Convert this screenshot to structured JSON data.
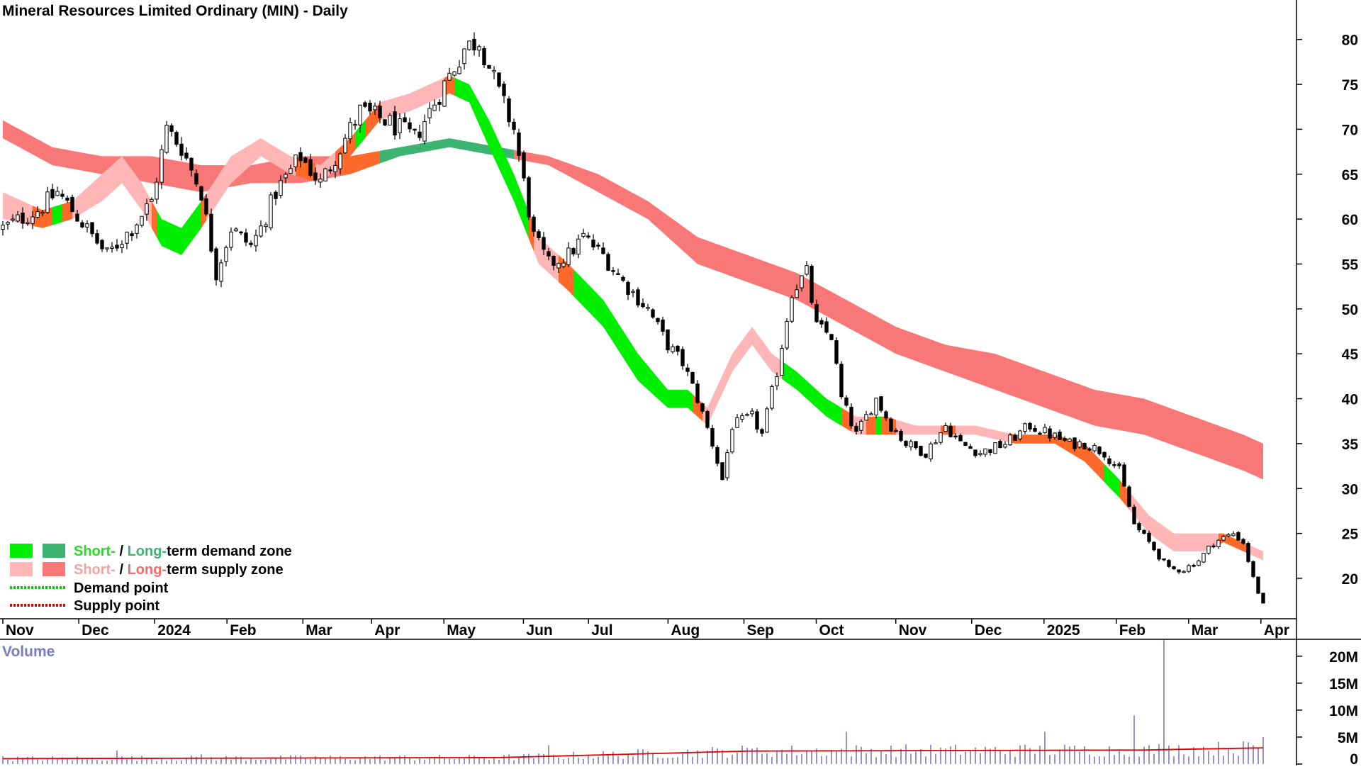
{
  "chart_data": {
    "type": "candlestick",
    "title": "Mineral Resources Limited Ordinary (MIN) - Daily",
    "price_axis": {
      "ticks": [
        20,
        25,
        30,
        35,
        40,
        45,
        50,
        55,
        60,
        65,
        70,
        75,
        80
      ],
      "range": [
        15.5,
        84
      ]
    },
    "x_axis_labels": [
      "Nov",
      "Dec",
      "2024",
      "Feb",
      "Mar",
      "Apr",
      "May",
      "Jun",
      "Jul",
      "Aug",
      "Sep",
      "Oct",
      "Nov",
      "Dec",
      "2025",
      "Feb",
      "Mar",
      "Apr"
    ],
    "legend": [
      {
        "swatches": [
          "#00ee00",
          "#3cb371"
        ],
        "parts": [
          {
            "text": "Short-",
            "color": "#22dd22"
          },
          {
            "text": " / ",
            "color": "#000000"
          },
          {
            "text": "Long-",
            "color": "#3cb371"
          },
          {
            "text": "term demand zone",
            "color": "#000000"
          }
        ]
      },
      {
        "swatches": [
          "#ffb6b6",
          "#f87777"
        ],
        "parts": [
          {
            "text": "Short-",
            "color": "#f4a3a3"
          },
          {
            "text": " / ",
            "color": "#000000"
          },
          {
            "text": "Long-",
            "color": "#f06b6b"
          },
          {
            "text": "term supply zone",
            "color": "#000000"
          }
        ]
      },
      {
        "line": "#00cc00",
        "parts": [
          {
            "text": "Demand point",
            "color": "#000000"
          }
        ]
      },
      {
        "line": "#dd0000",
        "parts": [
          {
            "text": "Supply point",
            "color": "#000000"
          }
        ]
      }
    ],
    "price_path": [
      [
        0,
        59
      ],
      [
        7,
        61
      ],
      [
        11,
        63
      ],
      [
        14,
        61
      ],
      [
        21,
        56
      ],
      [
        26,
        59
      ],
      [
        30,
        62
      ],
      [
        33,
        70
      ],
      [
        36,
        68
      ],
      [
        40,
        63
      ],
      [
        43,
        54
      ],
      [
        46,
        59
      ],
      [
        50,
        57
      ],
      [
        52,
        59
      ],
      [
        55,
        63
      ],
      [
        60,
        67
      ],
      [
        64,
        64
      ],
      [
        68,
        68
      ],
      [
        72,
        72
      ],
      [
        77,
        71
      ],
      [
        83,
        69
      ],
      [
        86,
        72
      ],
      [
        90,
        76
      ],
      [
        93,
        79
      ],
      [
        96,
        80
      ],
      [
        98,
        77
      ],
      [
        100,
        74
      ],
      [
        103,
        70
      ],
      [
        105,
        64
      ],
      [
        107,
        58
      ],
      [
        110,
        55
      ],
      [
        114,
        56
      ],
      [
        117,
        58
      ],
      [
        121,
        56
      ],
      [
        125,
        53
      ],
      [
        130,
        50
      ],
      [
        134,
        46
      ],
      [
        137,
        44
      ],
      [
        140,
        40
      ],
      [
        143,
        35
      ],
      [
        145,
        31
      ],
      [
        147,
        37
      ],
      [
        151,
        38
      ],
      [
        153,
        36
      ],
      [
        156,
        43
      ],
      [
        159,
        52
      ],
      [
        162,
        54
      ],
      [
        164,
        48
      ],
      [
        167,
        47
      ],
      [
        169,
        40
      ],
      [
        172,
        36
      ],
      [
        176,
        40
      ],
      [
        179,
        37
      ],
      [
        182,
        35
      ],
      [
        186,
        34
      ],
      [
        190,
        37
      ],
      [
        193,
        35
      ],
      [
        197,
        34
      ],
      [
        202,
        35
      ],
      [
        207,
        37
      ],
      [
        211,
        36
      ],
      [
        215,
        35
      ],
      [
        218,
        35
      ],
      [
        222,
        34
      ],
      [
        225,
        32
      ],
      [
        228,
        26
      ],
      [
        231,
        24
      ],
      [
        235,
        21
      ],
      [
        238,
        21
      ],
      [
        241,
        22
      ],
      [
        244,
        24
      ],
      [
        248,
        25
      ],
      [
        250,
        24
      ],
      [
        252,
        20
      ],
      [
        254,
        17
      ]
    ],
    "short_term_zone": {
      "upper": [
        [
          0,
          63
        ],
        [
          8,
          61
        ],
        [
          14,
          62
        ],
        [
          20,
          65
        ],
        [
          24,
          67
        ],
        [
          28,
          64
        ],
        [
          32,
          60
        ],
        [
          36,
          59
        ],
        [
          40,
          62
        ],
        [
          46,
          67
        ],
        [
          52,
          69
        ],
        [
          58,
          67
        ],
        [
          64,
          66
        ],
        [
          70,
          69
        ],
        [
          76,
          73
        ],
        [
          82,
          74
        ],
        [
          90,
          76
        ],
        [
          94,
          75
        ],
        [
          98,
          71
        ],
        [
          103,
          65
        ],
        [
          108,
          58
        ],
        [
          114,
          55
        ],
        [
          121,
          51
        ],
        [
          128,
          45
        ],
        [
          134,
          41
        ],
        [
          138,
          41
        ],
        [
          142,
          39
        ],
        [
          147,
          45
        ],
        [
          151,
          48
        ],
        [
          155,
          45
        ],
        [
          160,
          43
        ],
        [
          166,
          40
        ],
        [
          172,
          38
        ],
        [
          178,
          38
        ],
        [
          184,
          37
        ],
        [
          190,
          37
        ],
        [
          196,
          37
        ],
        [
          204,
          36
        ],
        [
          212,
          36
        ],
        [
          218,
          35
        ],
        [
          225,
          31
        ],
        [
          231,
          27
        ],
        [
          236,
          25
        ],
        [
          242,
          25
        ],
        [
          246,
          25
        ],
        [
          250,
          24
        ],
        [
          254,
          23
        ]
      ],
      "lower": [
        [
          0,
          60
        ],
        [
          8,
          59
        ],
        [
          14,
          60
        ],
        [
          20,
          62
        ],
        [
          24,
          64
        ],
        [
          28,
          61
        ],
        [
          32,
          57
        ],
        [
          36,
          56
        ],
        [
          40,
          59
        ],
        [
          46,
          64
        ],
        [
          52,
          67
        ],
        [
          58,
          65
        ],
        [
          64,
          64
        ],
        [
          70,
          67
        ],
        [
          76,
          71
        ],
        [
          82,
          72
        ],
        [
          90,
          74
        ],
        [
          94,
          73
        ],
        [
          98,
          68
        ],
        [
          103,
          62
        ],
        [
          108,
          55
        ],
        [
          114,
          52
        ],
        [
          121,
          48
        ],
        [
          128,
          42
        ],
        [
          134,
          39
        ],
        [
          138,
          39
        ],
        [
          142,
          37
        ],
        [
          147,
          43
        ],
        [
          151,
          46
        ],
        [
          155,
          43
        ],
        [
          160,
          41
        ],
        [
          166,
          38
        ],
        [
          172,
          36
        ],
        [
          178,
          36
        ],
        [
          184,
          36
        ],
        [
          190,
          36
        ],
        [
          196,
          36
        ],
        [
          204,
          35
        ],
        [
          212,
          35
        ],
        [
          218,
          33
        ],
        [
          225,
          29
        ],
        [
          231,
          25
        ],
        [
          236,
          23
        ],
        [
          242,
          23
        ],
        [
          246,
          24
        ],
        [
          250,
          23
        ],
        [
          254,
          22
        ]
      ]
    },
    "long_term_zone": {
      "upper": [
        [
          0,
          71
        ],
        [
          10,
          68
        ],
        [
          20,
          67
        ],
        [
          30,
          67
        ],
        [
          40,
          66
        ],
        [
          50,
          66
        ],
        [
          60,
          67
        ],
        [
          70,
          67
        ],
        [
          80,
          68
        ],
        [
          90,
          69
        ],
        [
          100,
          68
        ],
        [
          110,
          67
        ],
        [
          120,
          65
        ],
        [
          130,
          62
        ],
        [
          140,
          58
        ],
        [
          150,
          56
        ],
        [
          160,
          54
        ],
        [
          170,
          51
        ],
        [
          180,
          48
        ],
        [
          190,
          46
        ],
        [
          200,
          45
        ],
        [
          210,
          43
        ],
        [
          220,
          41
        ],
        [
          230,
          40
        ],
        [
          240,
          38
        ],
        [
          250,
          36
        ],
        [
          254,
          35
        ]
      ],
      "lower": [
        [
          0,
          69
        ],
        [
          10,
          66
        ],
        [
          20,
          65
        ],
        [
          30,
          64
        ],
        [
          40,
          63
        ],
        [
          50,
          64
        ],
        [
          60,
          64
        ],
        [
          70,
          65
        ],
        [
          80,
          67
        ],
        [
          90,
          68
        ],
        [
          100,
          67
        ],
        [
          110,
          66
        ],
        [
          120,
          63
        ],
        [
          130,
          60
        ],
        [
          140,
          55
        ],
        [
          150,
          53
        ],
        [
          160,
          51
        ],
        [
          170,
          48
        ],
        [
          180,
          45
        ],
        [
          190,
          43
        ],
        [
          200,
          41
        ],
        [
          210,
          39
        ],
        [
          220,
          37
        ],
        [
          230,
          36
        ],
        [
          240,
          34
        ],
        [
          250,
          32
        ],
        [
          254,
          31
        ]
      ]
    },
    "volume": {
      "label": "Volume",
      "ticks": [
        {
          "value": 0,
          "label": "0"
        },
        {
          "value": 5,
          "label": "5M"
        },
        {
          "value": 10,
          "label": "10M"
        },
        {
          "value": 15,
          "label": "15M"
        },
        {
          "value": 20,
          "label": "20M"
        }
      ],
      "range": [
        0,
        23
      ],
      "spikes": [
        [
          23,
          2.5
        ],
        [
          40,
          1.8
        ],
        [
          110,
          3.5
        ],
        [
          150,
          3.0
        ],
        [
          170,
          6.0
        ],
        [
          210,
          6.0
        ],
        [
          228,
          9.0
        ],
        [
          234,
          23.0
        ],
        [
          254,
          5.0
        ]
      ],
      "average": [
        [
          0,
          1.0
        ],
        [
          100,
          1.2
        ],
        [
          150,
          2.4
        ],
        [
          230,
          2.6
        ],
        [
          254,
          3.0
        ]
      ]
    }
  }
}
